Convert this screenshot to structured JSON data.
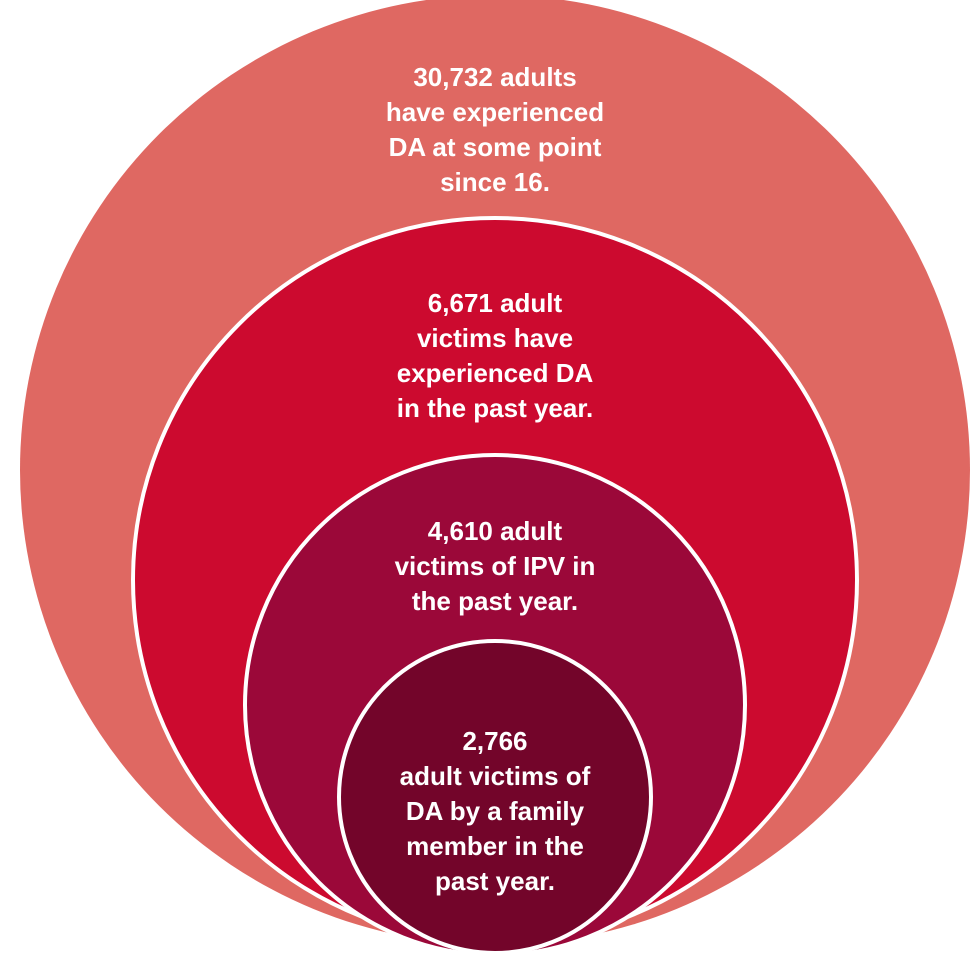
{
  "colors": {
    "outer": "#df6862",
    "second": "#cc0a2f",
    "third": "#9b0839",
    "inner": "#73052a",
    "stroke": "#ffffff",
    "text": "#ffffff"
  },
  "rings": [
    {
      "id": "all-adults",
      "lines": [
        "30,732 adults",
        "have experienced",
        "DA at some point",
        "since 16."
      ]
    },
    {
      "id": "past-year-da",
      "lines": [
        "6,671 adult",
        "victims have",
        "experienced DA",
        "in the past year."
      ]
    },
    {
      "id": "past-year-ipv",
      "lines": [
        "4,610 adult",
        "victims of IPV in",
        "the past year."
      ]
    },
    {
      "id": "past-year-family",
      "lines": [
        "2,766",
        "adult victims of",
        "DA by a family",
        "member in the",
        "past year."
      ]
    }
  ]
}
